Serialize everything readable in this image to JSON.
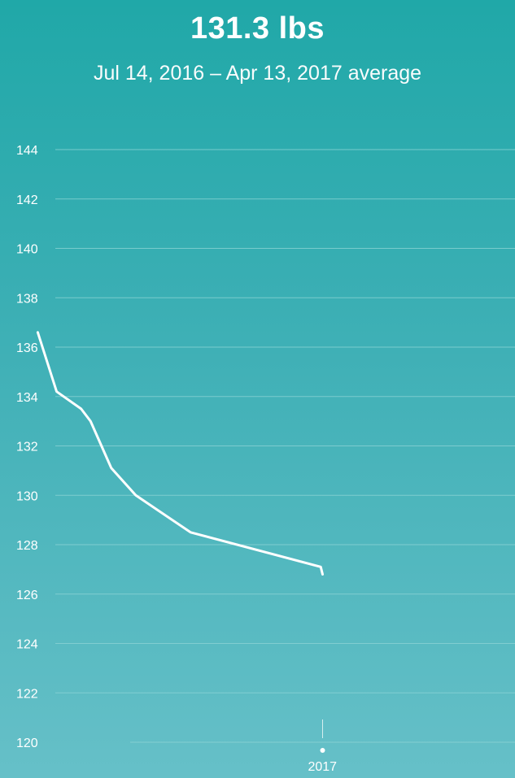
{
  "header": {
    "average_value": "131.3 lbs",
    "range_label": "Jul 14, 2016 – Apr 13, 2017 average"
  },
  "colors": {
    "background_top": "#20a8a8",
    "background_bottom": "#66c0c8",
    "line": "#ffffff",
    "gridline": "#8fd4d6"
  },
  "chart_data": {
    "type": "line",
    "title": "131.3 lbs",
    "subtitle": "Jul 14, 2016 – Apr 13, 2017 average",
    "xlabel": "",
    "ylabel": "",
    "ylim": [
      120,
      144
    ],
    "y_ticks": [
      144,
      142,
      140,
      138,
      136,
      134,
      132,
      130,
      128,
      126,
      124,
      122,
      120
    ],
    "x_ticks": [
      {
        "date": "2017-01-01",
        "label": "2017"
      }
    ],
    "xlim": [
      "2016-07-14",
      "2017-04-13"
    ],
    "grid": true,
    "series": [
      {
        "points": [
          {
            "x": "2016-08-03",
            "y": 136.6
          },
          {
            "x": "2016-08-13",
            "y": 134.2
          },
          {
            "x": "2016-08-26",
            "y": 133.5
          },
          {
            "x": "2016-08-31",
            "y": 133.0
          },
          {
            "x": "2016-09-11",
            "y": 131.1
          },
          {
            "x": "2016-09-24",
            "y": 130.0
          },
          {
            "x": "2016-10-23",
            "y": 128.5
          },
          {
            "x": "2016-12-31",
            "y": 127.1
          },
          {
            "x": "2017-01-01",
            "y": 126.8
          }
        ]
      }
    ]
  }
}
